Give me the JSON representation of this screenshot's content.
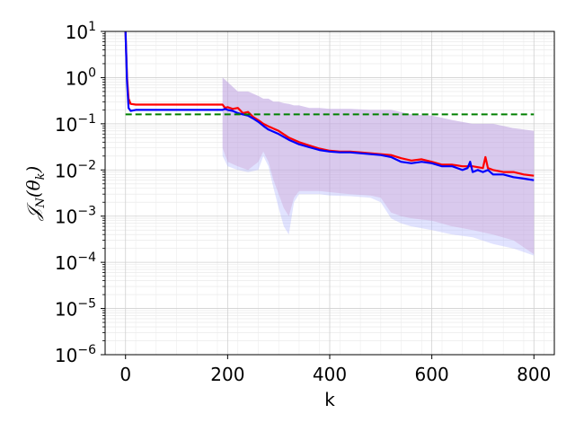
{
  "chart_data": {
    "type": "line",
    "title": "",
    "xlabel": "k",
    "ylabel": {
      "main": "𝒥",
      "sub": "N",
      "arg": "(θ",
      "argsub": "k",
      "close": ")"
    },
    "xlim": [
      -40,
      840
    ],
    "ylim": [
      1e-06,
      10
    ],
    "yscale": "log",
    "grid": true,
    "legend": "none",
    "x_ticks": [
      {
        "value": 0,
        "label": "0"
      },
      {
        "value": 200,
        "label": "200"
      },
      {
        "value": 400,
        "label": "400"
      },
      {
        "value": 600,
        "label": "600"
      },
      {
        "value": 800,
        "label": "800"
      }
    ],
    "y_ticks": [
      {
        "value": 1e-06,
        "base": "10",
        "exp": "−6"
      },
      {
        "value": 1e-05,
        "base": "10",
        "exp": "−5"
      },
      {
        "value": 0.0001,
        "base": "10",
        "exp": "−4"
      },
      {
        "value": 0.001,
        "base": "10",
        "exp": "−3"
      },
      {
        "value": 0.01,
        "base": "10",
        "exp": "−2"
      },
      {
        "value": 0.1,
        "base": "10",
        "exp": "−1"
      },
      {
        "value": 1,
        "base": "10",
        "exp": "0"
      },
      {
        "value": 10,
        "base": "10",
        "exp": "1"
      }
    ],
    "series": [
      {
        "color": "#ff0000",
        "x": [
          0,
          3,
          6,
          10,
          20,
          60,
          120,
          190,
          195,
          200,
          210,
          220,
          230,
          240,
          250,
          260,
          270,
          280,
          300,
          320,
          340,
          360,
          380,
          400,
          420,
          440,
          460,
          480,
          500,
          520,
          540,
          560,
          580,
          600,
          620,
          640,
          660,
          680,
          700,
          705,
          710,
          720,
          740,
          760,
          780,
          800
        ],
        "y": [
          10,
          1.0,
          0.35,
          0.27,
          0.26,
          0.26,
          0.26,
          0.26,
          0.22,
          0.23,
          0.21,
          0.22,
          0.17,
          0.18,
          0.14,
          0.12,
          0.1,
          0.088,
          0.07,
          0.05,
          0.04,
          0.034,
          0.029,
          0.026,
          0.025,
          0.025,
          0.024,
          0.023,
          0.022,
          0.021,
          0.018,
          0.016,
          0.017,
          0.015,
          0.013,
          0.013,
          0.012,
          0.012,
          0.011,
          0.019,
          0.011,
          0.01,
          0.009,
          0.009,
          0.008,
          0.0075
        ]
      },
      {
        "color": "#0000ff",
        "x": [
          0,
          3,
          6,
          10,
          20,
          60,
          120,
          190,
          195,
          200,
          210,
          220,
          230,
          240,
          250,
          260,
          270,
          280,
          300,
          320,
          340,
          360,
          380,
          400,
          420,
          440,
          460,
          480,
          500,
          520,
          540,
          560,
          580,
          600,
          620,
          640,
          660,
          670,
          675,
          680,
          690,
          700,
          710,
          720,
          740,
          760,
          780,
          800
        ],
        "y": [
          10,
          0.8,
          0.22,
          0.19,
          0.2,
          0.2,
          0.2,
          0.2,
          0.21,
          0.2,
          0.19,
          0.17,
          0.16,
          0.15,
          0.13,
          0.11,
          0.09,
          0.075,
          0.06,
          0.045,
          0.036,
          0.031,
          0.027,
          0.025,
          0.024,
          0.024,
          0.023,
          0.022,
          0.021,
          0.019,
          0.015,
          0.014,
          0.015,
          0.014,
          0.012,
          0.012,
          0.01,
          0.011,
          0.015,
          0.009,
          0.01,
          0.009,
          0.01,
          0.008,
          0.008,
          0.007,
          0.0065,
          0.006
        ]
      },
      {
        "color": "#008000",
        "dashed": true,
        "x": [
          0,
          800
        ],
        "y": [
          0.16,
          0.16
        ]
      }
    ],
    "bands": [
      {
        "color": "#aab0ff",
        "opacity": 0.35,
        "x": [
          190,
          200,
          220,
          240,
          260,
          270,
          280,
          290,
          300,
          310,
          320,
          330,
          340,
          360,
          380,
          400,
          440,
          480,
          500,
          520,
          540,
          560,
          600,
          640,
          680,
          720,
          760,
          800
        ],
        "lower": [
          0.02,
          0.012,
          0.01,
          0.009,
          0.01,
          0.02,
          0.012,
          0.004,
          0.0015,
          0.0006,
          0.0004,
          0.002,
          0.003,
          0.003,
          0.003,
          0.0028,
          0.0027,
          0.0025,
          0.002,
          0.0009,
          0.0007,
          0.0006,
          0.0005,
          0.0004,
          0.00035,
          0.00025,
          0.0002,
          0.00014
        ],
        "upper": [
          1.0,
          0.8,
          0.5,
          0.5,
          0.4,
          0.35,
          0.35,
          0.3,
          0.3,
          0.28,
          0.27,
          0.25,
          0.25,
          0.22,
          0.22,
          0.21,
          0.21,
          0.2,
          0.2,
          0.2,
          0.18,
          0.16,
          0.15,
          0.12,
          0.1,
          0.1,
          0.08,
          0.07
        ]
      },
      {
        "color": "#cc99cc",
        "opacity": 0.35,
        "x": [
          190,
          200,
          220,
          240,
          260,
          270,
          280,
          290,
          300,
          310,
          320,
          330,
          340,
          360,
          380,
          400,
          440,
          480,
          500,
          520,
          540,
          560,
          600,
          640,
          680,
          720,
          760,
          800
        ],
        "lower": [
          0.03,
          0.015,
          0.012,
          0.01,
          0.015,
          0.025,
          0.015,
          0.006,
          0.003,
          0.0015,
          0.001,
          0.0025,
          0.0035,
          0.0035,
          0.0035,
          0.0033,
          0.003,
          0.0028,
          0.0025,
          0.0012,
          0.001,
          0.0009,
          0.0008,
          0.0006,
          0.0005,
          0.0004,
          0.0003,
          0.00015
        ],
        "upper": [
          1.0,
          0.8,
          0.5,
          0.5,
          0.4,
          0.35,
          0.35,
          0.3,
          0.3,
          0.28,
          0.27,
          0.25,
          0.25,
          0.22,
          0.22,
          0.21,
          0.21,
          0.2,
          0.2,
          0.2,
          0.18,
          0.16,
          0.15,
          0.12,
          0.1,
          0.1,
          0.08,
          0.07
        ]
      }
    ]
  }
}
